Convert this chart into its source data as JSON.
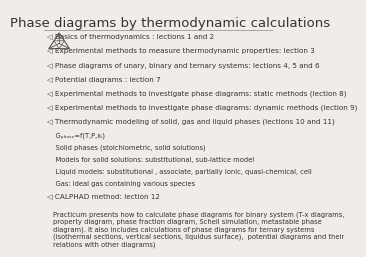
{
  "title": "Phase diagrams by thermodynamic calculations",
  "title_fontsize": 9.5,
  "bg_color": "#f0ede8",
  "text_color": "#333333",
  "bullet": "◁",
  "bullet_items": [
    "Basics of thermodynamics : lections 1 and 2",
    "Experimental methods to measure thermodynamic properties: lection 3",
    "Phase diagrams of unary, binary and ternary systems: lections 4, 5 and 6",
    "Potential diagrams : lection 7",
    "Experimental methods to investigate phase diagrams: static methods (lection 8)",
    "Experimental methods to investigate phase diagrams: dynamic methods (lection 9)",
    "Thermodynamic modeling of solid, gas and liquid phases (lections 10 and 11)"
  ],
  "sub_items": [
    "    Gₚₕₐₛₑ=f(T,P,xᵢ)",
    "    Solid phases (stoichiometric, solid solutions)",
    "    Models for solid solutions: substitutional, sub-lattice model",
    "    Liquid models: substitutional , associate, partially ionic, quasi-chemical, cell",
    "    Gas: ideal gas containing various species"
  ],
  "last_bullet": "CALPHAD method: lection 12",
  "practicum": "Practicum presents how to calculate phase diagrams for binary system (T-x diagrams,\nproperty diagram, phase fraction diagram, Scheil simulation, metastable phase\ndiagram). It also includes calculations of phase diagrams for ternary systems\n(isothermal sections, vertical sections, liquidus surface),  potential diagrams and their\nrelations with other diagrams)",
  "fontsize_bullet": 5.2,
  "fontsize_sub": 4.9,
  "fontsize_practicum": 4.9,
  "logo_color": "#555555"
}
